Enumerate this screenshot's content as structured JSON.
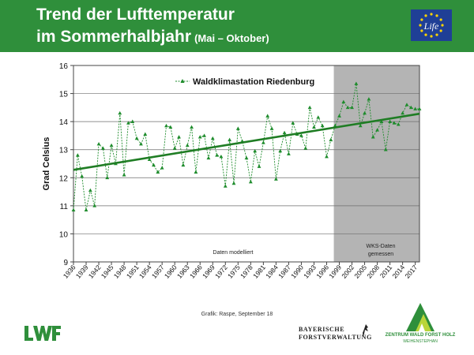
{
  "header": {
    "title_line1": "Trend der Lufttemperatur",
    "title_line2": "im Sommerhalbjahr",
    "subtitle": "(Mai – Oktober)"
  },
  "logos": {
    "eu_life": "Life",
    "bayern_line1": "BAYERISCHE",
    "bayern_line2": "FORSTVERWALTUNG",
    "zentrum_line1": "ZENTRUM WALD FORST HOLZ",
    "zentrum_line2": "WEIHENSTEPHAN"
  },
  "source": "Grafik: Raspe, September 18",
  "colors": {
    "header_green": "#2f8f3b",
    "series_green": "#1e8c2c",
    "trend_green": "#1f7d24",
    "measured_bg": "#b4b4b4",
    "eu_blue": "#1f3f96",
    "eu_star": "#ffd400"
  },
  "chart_data": {
    "type": "line",
    "ylabel": "Grad Celsius",
    "ylim": [
      9,
      16
    ],
    "yticks": [
      "9",
      "10",
      "11",
      "12",
      "13",
      "14",
      "15",
      "16"
    ],
    "xlim": [
      1936,
      2018
    ],
    "xticks": [
      "1936",
      "1939",
      "1942",
      "1945",
      "1948",
      "1951",
      "1954",
      "1957",
      "1960",
      "1963",
      "1966",
      "1969",
      "1972",
      "1975",
      "1978",
      "1981",
      "1984",
      "1987",
      "1990",
      "1993",
      "1996",
      "1999",
      "2002",
      "2005",
      "2008",
      "2011",
      "2014",
      "2017"
    ],
    "grid": "horizontal",
    "legend_position": "top-center",
    "series": [
      {
        "name": "Waldklimastation Riedenburg",
        "x": [
          1936,
          1937,
          1938,
          1939,
          1940,
          1941,
          1942,
          1943,
          1944,
          1945,
          1946,
          1947,
          1948,
          1949,
          1950,
          1951,
          1952,
          1953,
          1954,
          1955,
          1956,
          1957,
          1958,
          1959,
          1960,
          1961,
          1962,
          1963,
          1964,
          1965,
          1966,
          1967,
          1968,
          1969,
          1970,
          1971,
          1972,
          1973,
          1974,
          1975,
          1976,
          1977,
          1978,
          1979,
          1980,
          1981,
          1982,
          1983,
          1984,
          1985,
          1986,
          1987,
          1988,
          1989,
          1990,
          1991,
          1992,
          1993,
          1994,
          1995,
          1996,
          1997,
          1998,
          1999,
          2000,
          2001,
          2002,
          2003,
          2004,
          2005,
          2006,
          2007,
          2008,
          2009,
          2010,
          2011,
          2012,
          2013,
          2014,
          2015,
          2016,
          2017,
          2018
        ],
        "y": [
          10.85,
          12.8,
          12.05,
          10.85,
          11.55,
          11.0,
          13.2,
          13.05,
          12.0,
          13.15,
          12.5,
          14.3,
          12.1,
          13.95,
          14.0,
          13.4,
          13.2,
          13.55,
          12.65,
          12.45,
          12.2,
          12.35,
          13.85,
          13.8,
          13.05,
          13.45,
          12.45,
          13.15,
          13.8,
          12.2,
          13.45,
          13.5,
          12.7,
          13.4,
          12.8,
          12.75,
          11.7,
          13.35,
          11.8,
          13.75,
          13.3,
          12.7,
          11.85,
          12.95,
          12.4,
          13.25,
          14.2,
          13.75,
          11.95,
          12.95,
          13.6,
          12.85,
          13.95,
          13.55,
          13.5,
          13.05,
          14.5,
          13.8,
          14.15,
          13.85,
          12.75,
          13.35,
          13.85,
          14.2,
          14.7,
          14.5,
          14.5,
          15.35,
          13.85,
          14.3,
          14.8,
          13.45,
          13.7,
          14.0,
          13.0,
          14.0,
          13.95,
          13.9,
          14.3,
          14.6,
          14.5,
          14.45,
          14.45
        ]
      }
    ],
    "trend": {
      "name": "Trend",
      "x": [
        1936,
        2018
      ],
      "y": [
        12.28,
        14.28
      ]
    },
    "annotations": [
      "Daten modelliert",
      "WKS-Daten",
      "gemessen"
    ],
    "measured_from_year": 1998
  }
}
